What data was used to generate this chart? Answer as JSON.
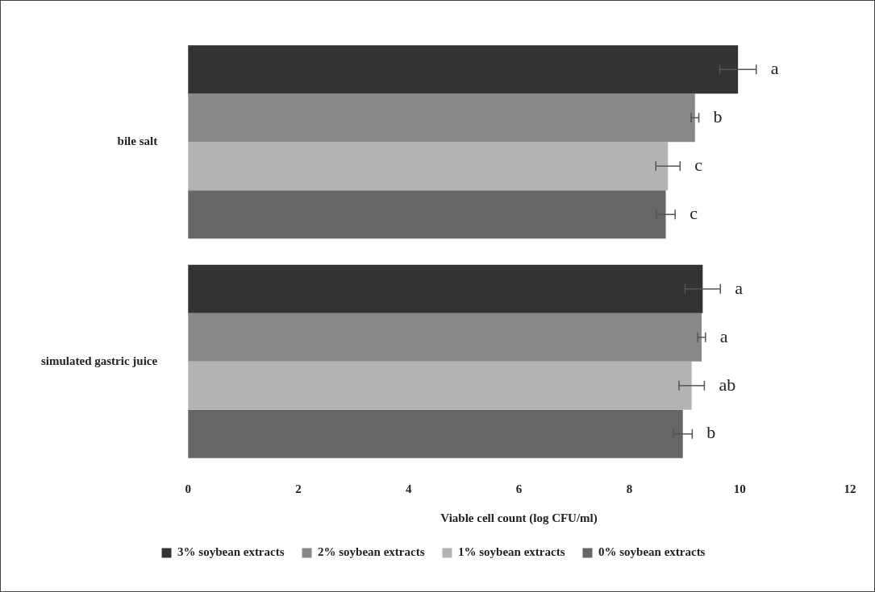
{
  "chart_data": {
    "type": "bar",
    "orientation": "horizontal",
    "xlabel": "Viable cell count (log CFU/ml)",
    "categories": [
      "bile salt",
      "simulated gastric juice"
    ],
    "xlim": [
      0,
      12
    ],
    "xticks": [
      0,
      2,
      4,
      6,
      8,
      10,
      12
    ],
    "grid": false,
    "legend": "bottom",
    "series": [
      {
        "name": "3% soybean extracts",
        "color": "#333333",
        "values": [
          9.97,
          9.33
        ],
        "errors": [
          0.33,
          0.32
        ],
        "value_labels": [
          "a",
          "a"
        ]
      },
      {
        "name": "2% soybean extracts",
        "color": "#888888",
        "values": [
          9.19,
          9.31
        ],
        "errors": [
          0.07,
          0.07
        ],
        "value_labels": [
          "b",
          "a"
        ]
      },
      {
        "name": "1% soybean extracts",
        "color": "#b3b3b3",
        "values": [
          8.7,
          9.13
        ],
        "errors": [
          0.22,
          0.23
        ],
        "value_labels": [
          "c",
          "ab"
        ]
      },
      {
        "name": "0% soybean extracts",
        "color": "#666666",
        "values": [
          8.66,
          8.97
        ],
        "errors": [
          0.17,
          0.17
        ],
        "value_labels": [
          "c",
          "b"
        ]
      }
    ]
  }
}
